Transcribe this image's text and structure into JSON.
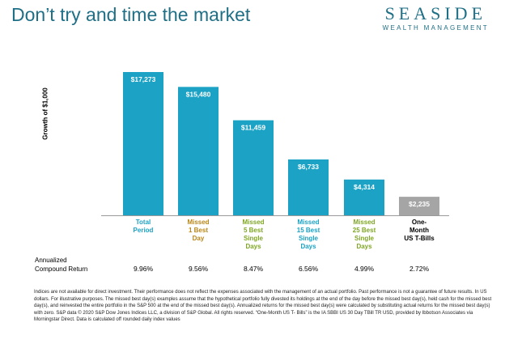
{
  "slide": {
    "title": "Don’t try and time the market",
    "logo": {
      "brand": "SEASIDE",
      "subtitle": "WEALTH MANAGEMENT"
    }
  },
  "chart_data": {
    "type": "bar",
    "title": "",
    "ylabel": "Growth of $1,000",
    "xlabel": "",
    "ylim": [
      0,
      17273
    ],
    "categories": [
      [
        "Total",
        "Period"
      ],
      [
        "Missed",
        "1 Best",
        "Day"
      ],
      [
        "Missed",
        "5 Best",
        "Single",
        "Days"
      ],
      [
        "Missed",
        "15 Best",
        "Single",
        "Days"
      ],
      [
        "Missed",
        "25 Best",
        "Single",
        "Days"
      ],
      [
        "One-",
        "Month",
        "US T-Bills"
      ]
    ],
    "values": [
      17273,
      15480,
      11459,
      6733,
      4314,
      2235
    ],
    "value_labels": [
      "$17,273",
      "$15,480",
      "$11,459",
      "$6,733",
      "$4,314",
      "$2,235"
    ],
    "bar_colors": [
      "#1ba2c4",
      "#1ba2c4",
      "#1ba2c4",
      "#1ba2c4",
      "#1ba2c4",
      "#a5a5a5"
    ],
    "category_colors": [
      "#1ba2c4",
      "#b8861b",
      "#7fa624",
      "#1ba2c4",
      "#7fa624",
      "#000000"
    ],
    "returns_label": [
      "Annualized",
      "Compound Return"
    ],
    "returns": [
      "9.96%",
      "9.56%",
      "8.47%",
      "6.56%",
      "4.99%",
      "2.72%"
    ]
  },
  "footnote": "Indices are not available for direct investment. Their performance does not reflect the expenses associated with the management of an actual portfolio. Past performance is not a guarantee of future results. In US dollars. For illustrative purposes. The missed best day(s) examples assume that the hypothetical portfolio fully divested its holdings at the end of the day before the missed best day(s), held cash for the missed best day(s), and reinvested the entire portfolio in the S&P 500 at the end of the missed best day(s). Annualized returns for the missed best day(s) were calculated by substituting actual returns for the missed best day(s) with zero.  S&P data © 2020 S&P Dow Jones Indices LLC, a division of S&P Global. All rights reserved. “One-Month US T- Bills” is the IA SBBI US 30 Day TBill TR USD, provided by Ibbotson Associates via Morningstar Direct. Data is calculated off rounded daily index values"
}
